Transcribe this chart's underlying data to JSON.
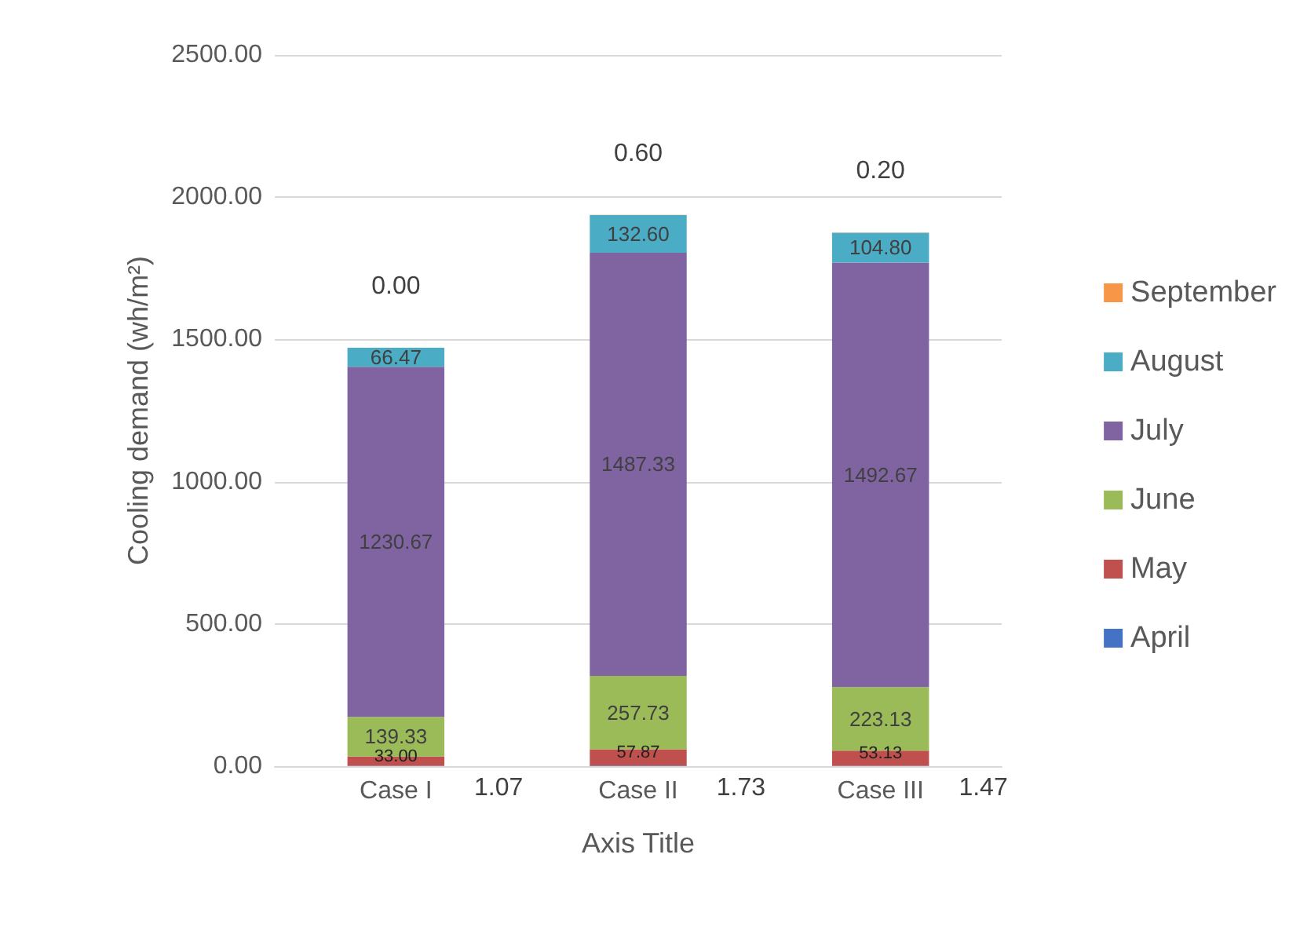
{
  "chart_data": {
    "type": "bar",
    "stacked": true,
    "xlabel": "Axis Title",
    "ylabel": "Cooling demand (wh/m²)",
    "categories": [
      "Case I",
      "Case II",
      "Case III"
    ],
    "series": [
      {
        "name": "April",
        "color": "#4472c4",
        "values": [
          1.07,
          1.73,
          1.47
        ],
        "value_labels": [
          "1.07",
          "1.73",
          "1.47"
        ]
      },
      {
        "name": "May",
        "color": "#c0504d",
        "values": [
          33.0,
          57.87,
          53.13
        ],
        "value_labels": [
          "33.00",
          "57.87",
          "53.13"
        ]
      },
      {
        "name": "June",
        "color": "#9bbb59",
        "values": [
          139.33,
          257.73,
          223.13
        ],
        "value_labels": [
          "139.33",
          "257.73",
          "223.13"
        ]
      },
      {
        "name": "July",
        "color": "#8064a2",
        "values": [
          1230.67,
          1487.33,
          1492.67
        ],
        "value_labels": [
          "1230.67",
          "1487.33",
          "1492.67"
        ]
      },
      {
        "name": "August",
        "color": "#4bacc6",
        "values": [
          66.47,
          132.6,
          104.8
        ],
        "value_labels": [
          "66.47",
          "132.60",
          "104.80"
        ]
      },
      {
        "name": "September",
        "color": "#f79646",
        "values": [
          0.0,
          0.6,
          0.2
        ],
        "value_labels": [
          "0.00",
          "0.60",
          "0.20"
        ]
      }
    ],
    "ylim": [
      0,
      2500
    ],
    "yticks": [
      {
        "value": 0,
        "label": "0.00"
      },
      {
        "value": 500,
        "label": "500.00"
      },
      {
        "value": 1000,
        "label": "1000.00"
      },
      {
        "value": 1500,
        "label": "1500.00"
      },
      {
        "value": 2000,
        "label": "2000.00"
      },
      {
        "value": 2500,
        "label": "2500.00"
      }
    ],
    "grid": "y",
    "legend": "right"
  }
}
